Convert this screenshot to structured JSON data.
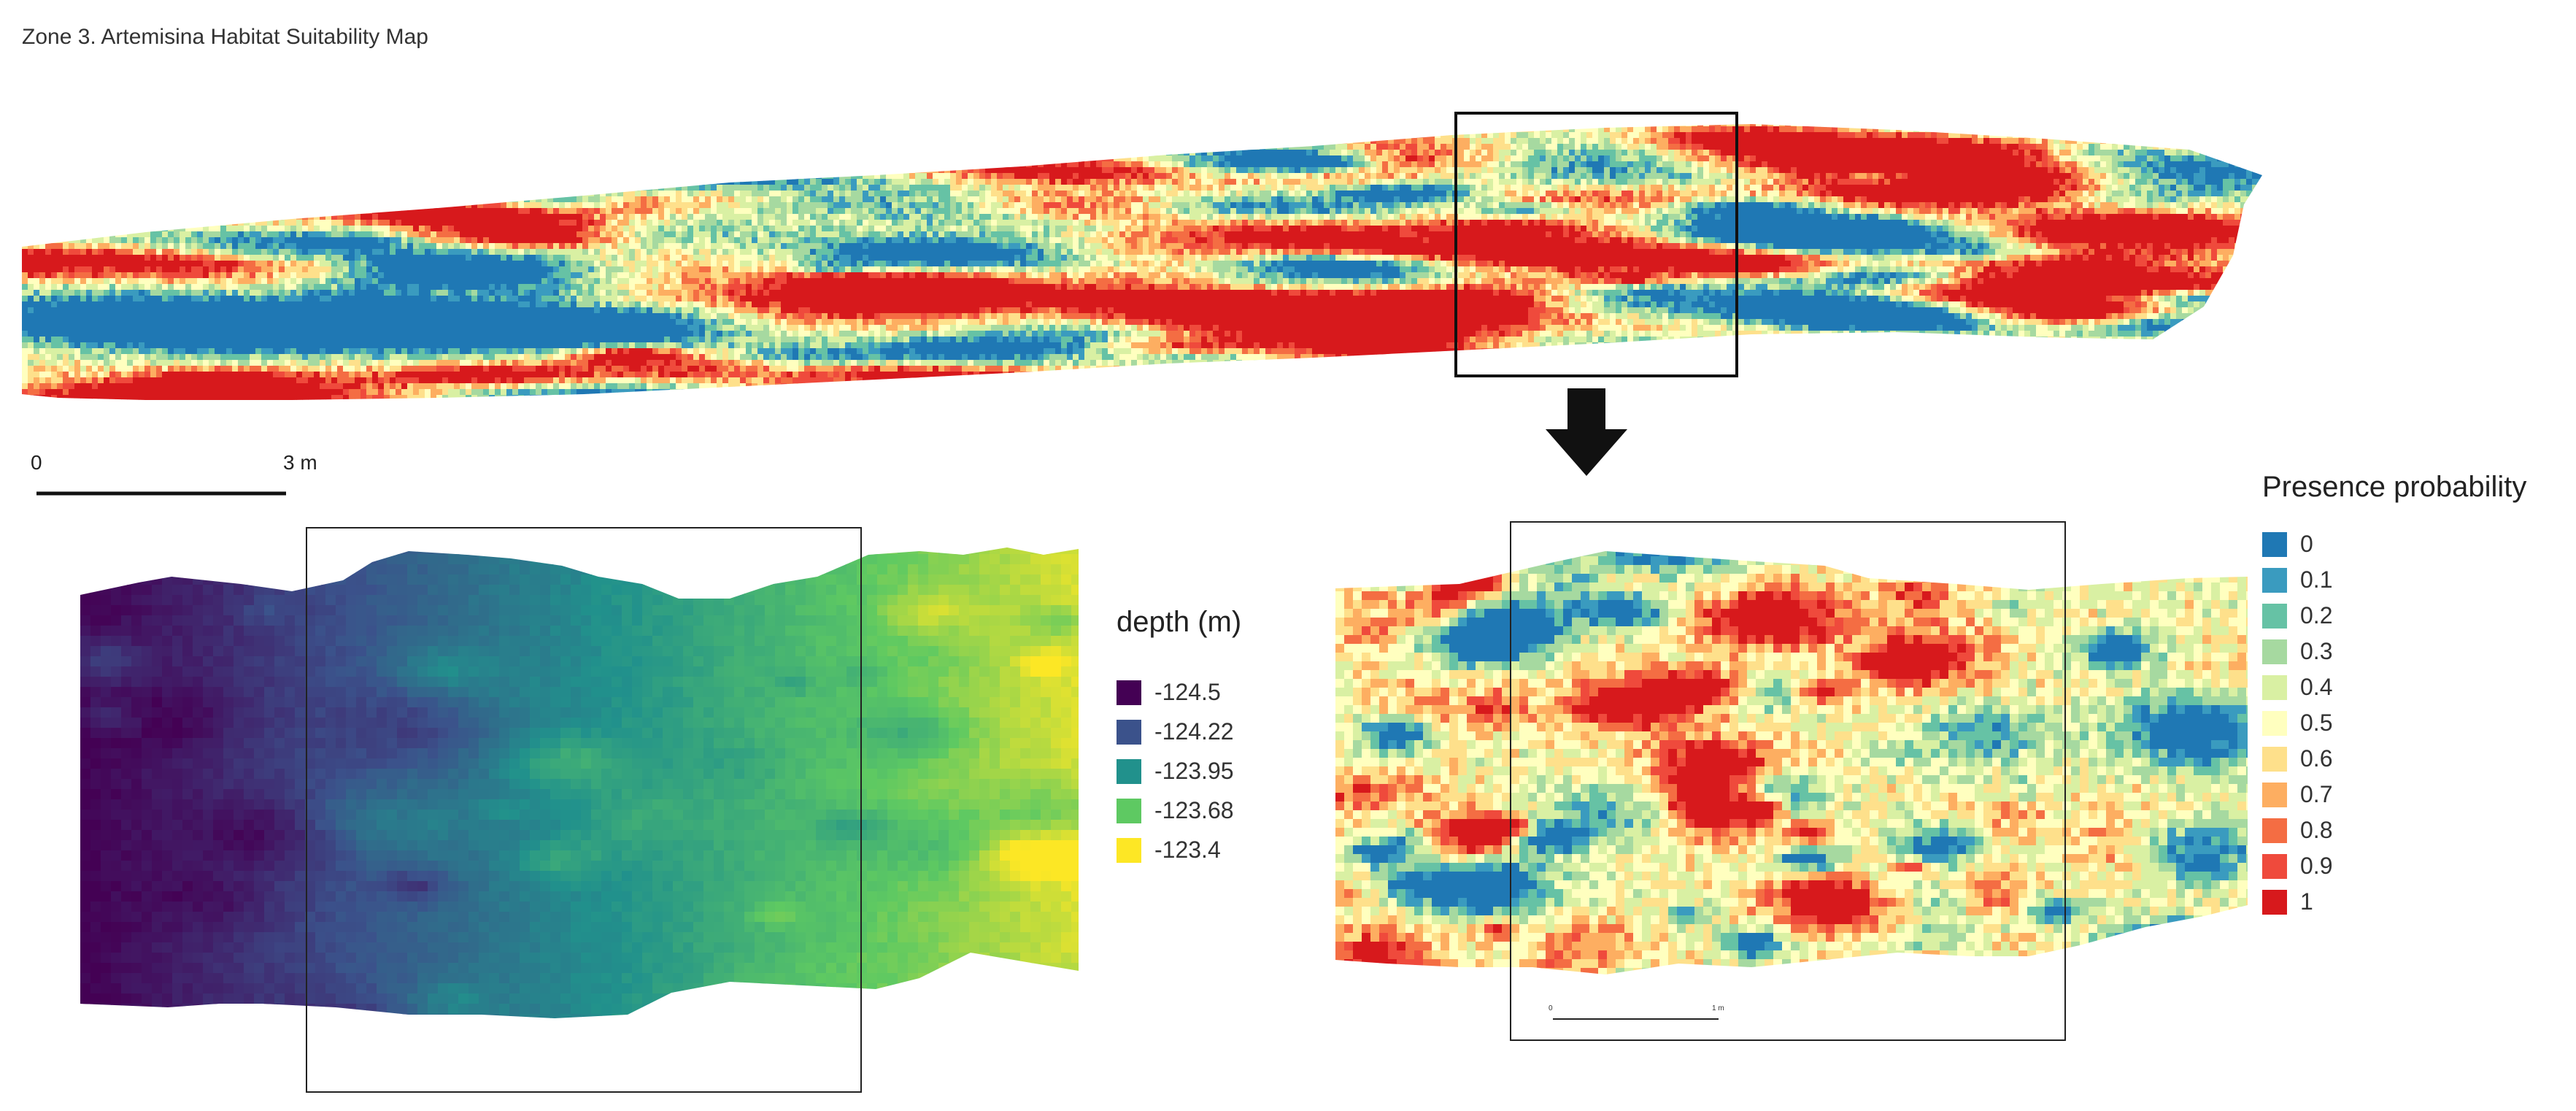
{
  "title": "Zone 3. Artemisina Habitat Suitability Map",
  "scalebar_main": {
    "start": "0",
    "end": "3 m"
  },
  "scalebar_inset": {
    "start": "0",
    "end": "1 m"
  },
  "depth_legend": {
    "title": "depth (m)",
    "items": [
      {
        "label": "-124.5",
        "color": "#440154"
      },
      {
        "label": "-124.22",
        "color": "#3b528b"
      },
      {
        "label": "-123.95",
        "color": "#21918c"
      },
      {
        "label": "-123.68",
        "color": "#5ec962"
      },
      {
        "label": "-123.4",
        "color": "#fde725"
      }
    ]
  },
  "presence_legend": {
    "title": "Presence probability",
    "items": [
      {
        "label": "0",
        "color": "#1f78b4"
      },
      {
        "label": "0.1",
        "color": "#3a9bbf"
      },
      {
        "label": "0.2",
        "color": "#66c2a5"
      },
      {
        "label": "0.3",
        "color": "#a6d9a0"
      },
      {
        "label": "0.4",
        "color": "#d9f0a3"
      },
      {
        "label": "0.5",
        "color": "#ffffbf"
      },
      {
        "label": "0.6",
        "color": "#fee08b"
      },
      {
        "label": "0.7",
        "color": "#fdae61"
      },
      {
        "label": "0.8",
        "color": "#f46d43"
      },
      {
        "label": "0.9",
        "color": "#ef4a3c"
      },
      {
        "label": "1",
        "color": "#d7191c"
      }
    ]
  }
}
